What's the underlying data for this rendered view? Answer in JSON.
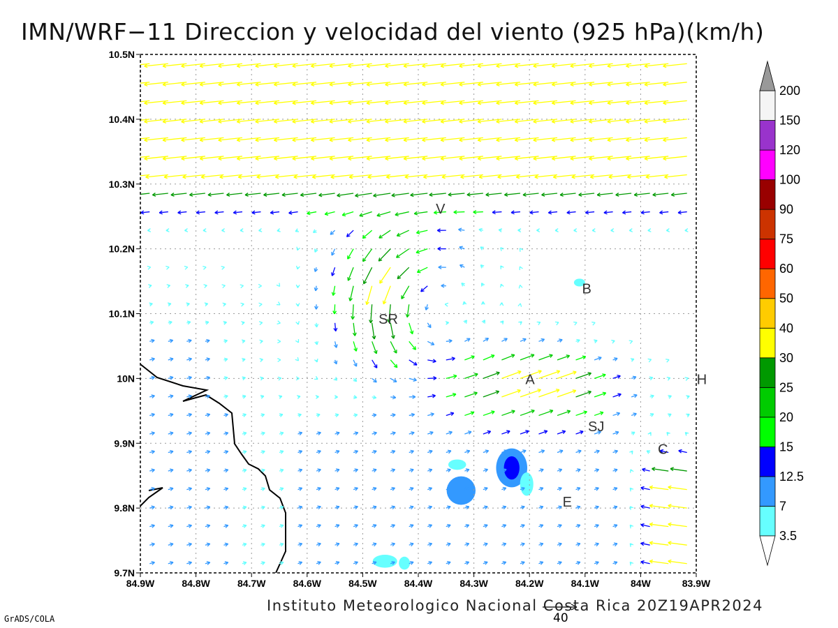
{
  "title": "IMN/WRF−11 Direccion y velocidad del viento (925 hPa)(km/h)",
  "footer": "Instituto Meteorologico Nacional Costa Rica 20Z19APR2024",
  "software_credit": "GrADS/COLA",
  "reference_vector": {
    "value": "40"
  },
  "map": {
    "lon_range": [
      -84.9,
      -83.9
    ],
    "lat_range": [
      9.7,
      10.5
    ],
    "x_ticks": [
      "84.9W",
      "84.8W",
      "84.7W",
      "84.6W",
      "84.5W",
      "84.4W",
      "84.3W",
      "84.2W",
      "84.1W",
      "84W",
      "83.9W"
    ],
    "y_ticks": [
      "10.5N",
      "10.4N",
      "10.3N",
      "10.2N",
      "10.1N",
      "10N",
      "9.9N",
      "9.8N",
      "9.7N"
    ],
    "grid": "dotted",
    "city_labels": [
      {
        "text": "V",
        "lon": -84.36,
        "lat": 10.262
      },
      {
        "text": "SR",
        "lon": -84.454,
        "lat": 10.092
      },
      {
        "text": "B",
        "lon": -84.097,
        "lat": 10.139
      },
      {
        "text": "A",
        "lon": -84.199,
        "lat": 9.999
      },
      {
        "text": "H",
        "lon": -83.89,
        "lat": 9.999
      },
      {
        "text": "SJ",
        "lon": -84.08,
        "lat": 9.926
      },
      {
        "text": "C",
        "lon": -83.96,
        "lat": 9.891
      },
      {
        "text": "E",
        "lon": -84.132,
        "lat": 9.81
      }
    ],
    "low_speed_patches": [
      {
        "lon": -84.232,
        "lat": 9.862,
        "rx": 0.028,
        "ry": 0.03,
        "level": "7"
      },
      {
        "lon": -84.232,
        "lat": 9.862,
        "rx": 0.014,
        "ry": 0.018,
        "level": "12.5"
      },
      {
        "lon": -84.323,
        "lat": 9.827,
        "rx": 0.026,
        "ry": 0.022,
        "level": "7"
      },
      {
        "lon": -84.46,
        "lat": 9.718,
        "rx": 0.022,
        "ry": 0.01,
        "level": "3.5"
      },
      {
        "lon": -84.425,
        "lat": 9.715,
        "rx": 0.01,
        "ry": 0.01,
        "level": "3.5"
      },
      {
        "lon": -84.205,
        "lat": 9.837,
        "rx": 0.012,
        "ry": 0.018,
        "level": "3.5"
      },
      {
        "lon": -84.33,
        "lat": 9.867,
        "rx": 0.016,
        "ry": 0.008,
        "level": "3.5"
      },
      {
        "lon": -84.11,
        "lat": 10.148,
        "rx": 0.01,
        "ry": 0.006,
        "level": "3.5"
      }
    ]
  },
  "colorbar": {
    "levels": [
      "3.5",
      "7",
      "12.5",
      "15",
      "20",
      "25",
      "30",
      "40",
      "50",
      "60",
      "75",
      "90",
      "100",
      "120",
      "150",
      "200"
    ],
    "colors": [
      "#66ffff",
      "#3399ff",
      "#0000ff",
      "#00ff00",
      "#00cc00",
      "#009900",
      "#ffff00",
      "#ffcc00",
      "#ff6600",
      "#ff0000",
      "#cc3300",
      "#990000",
      "#ff00ff",
      "#9933cc",
      "#f5f5f5",
      "#999999"
    ]
  }
}
